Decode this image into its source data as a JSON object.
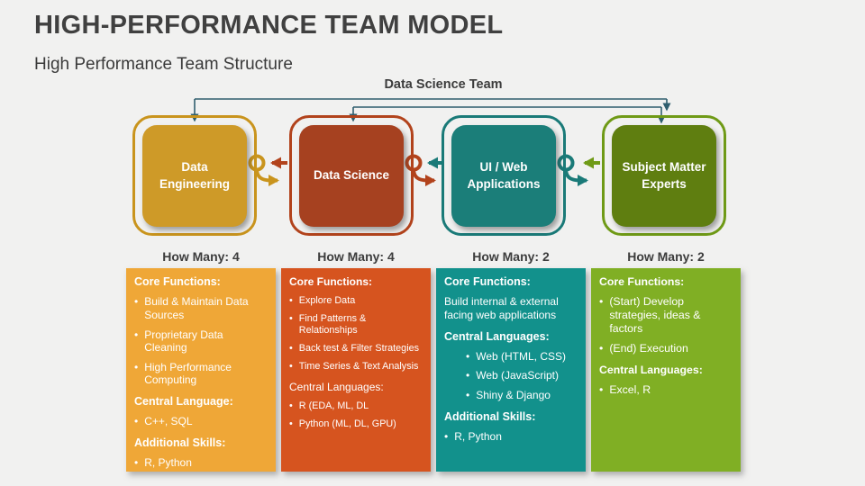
{
  "slide": {
    "title": "HIGH-PERFORMANCE TEAM MODEL",
    "subtitle": "High Performance Team Structure",
    "team_label": "Data Science Team"
  },
  "colors": {
    "background": "#F1F1F0",
    "title_text": "#404040",
    "body_text": "#3C3C3C",
    "connector_navy": "#2F5E6E",
    "panel_text": "#FFFFFF"
  },
  "columns": [
    {
      "name": "data-engineering",
      "box_label": "Data Engineering",
      "how_many": "How Many: 4",
      "colors": {
        "box": "#CE9A28",
        "outline": "#C9941D",
        "panel": "#EFA737"
      },
      "panel_blocks": [
        {
          "style": "heading",
          "text": "Core Functions:"
        },
        {
          "style": "bullet",
          "text": "Build & Maintain Data Sources"
        },
        {
          "style": "bullet",
          "text": "Proprietary Data Cleaning"
        },
        {
          "style": "bullet",
          "text": "High Performance Computing"
        },
        {
          "style": "heading",
          "text": "Central Language:"
        },
        {
          "style": "bullet",
          "text": "C++, SQL"
        },
        {
          "style": "heading",
          "text": "Additional Skills:"
        },
        {
          "style": "bullet",
          "text": "R, Python"
        }
      ]
    },
    {
      "name": "data-science",
      "box_label": "Data Science",
      "how_many": "How Many: 4",
      "colors": {
        "box": "#A64120",
        "outline": "#B2431C",
        "panel": "#D6541F"
      },
      "panel_blocks": [
        {
          "style": "heading",
          "text": "Core Functions:"
        },
        {
          "style": "bullet",
          "text": "Explore Data"
        },
        {
          "style": "bullet",
          "text": "Find Patterns & Relationships"
        },
        {
          "style": "bullet",
          "text": "Back test & Filter Strategies"
        },
        {
          "style": "bullet",
          "text": "Time Series & Text Analysis"
        },
        {
          "style": "subheading",
          "text": "Central Languages:"
        },
        {
          "style": "bullet",
          "text": "R (EDA, ML, DL"
        },
        {
          "style": "bullet",
          "text": "Python (ML, DL, GPU)"
        }
      ]
    },
    {
      "name": "ui-web-applications",
      "box_label": "UI / Web Applications",
      "how_many": "How Many: 2",
      "colors": {
        "box": "#1B7E79",
        "outline": "#1A7A78",
        "panel": "#12918C"
      },
      "panel_blocks": [
        {
          "style": "heading",
          "text": "Core Functions:"
        },
        {
          "style": "text",
          "text": "Build internal & external facing web applications"
        },
        {
          "style": "heading",
          "text": "Central Languages:"
        },
        {
          "style": "bullet-indent",
          "text": "Web (HTML, CSS)"
        },
        {
          "style": "bullet-indent",
          "text": "Web (JavaScript)"
        },
        {
          "style": "bullet-indent",
          "text": "Shiny & Django"
        },
        {
          "style": "heading",
          "text": "Additional Skills:"
        },
        {
          "style": "bullet",
          "text": "R, Python"
        }
      ]
    },
    {
      "name": "subject-matter-experts",
      "box_label": "Subject Matter Experts",
      "how_many": "How Many: 2",
      "colors": {
        "box": "#5F7E10",
        "outline": "#6F9A16",
        "panel": "#80AF24"
      },
      "panel_blocks": [
        {
          "style": "heading",
          "text": "Core Functions:"
        },
        {
          "style": "bullet",
          "text": "(Start) Develop strategies, ideas & factors"
        },
        {
          "style": "bullet",
          "text": "(End) Execution"
        },
        {
          "style": "heading",
          "text": "Central Languages:"
        },
        {
          "style": "bullet",
          "text": "Excel, R"
        }
      ]
    }
  ]
}
